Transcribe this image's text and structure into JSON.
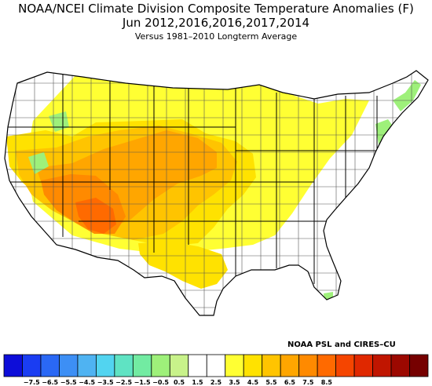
{
  "title": {
    "line1": "NOAA/NCEI Climate Division Composite Temperature Anomalies (F)",
    "line2": "Jun   2012,2016,2016,2017,2014",
    "line3": "Versus 1981–2010 Longterm Average"
  },
  "credit": "NOAA PSL and CIRES–CU",
  "colorbar": {
    "colors": [
      "#0d0dd9",
      "#1a3df2",
      "#2a68f5",
      "#3d8ff5",
      "#4fb3f2",
      "#52d4f0",
      "#5fe3c3",
      "#72eba2",
      "#9ef07a",
      "#c8f28a",
      "#ffffff",
      "#ffffff",
      "#ffff33",
      "#ffe200",
      "#ffc400",
      "#ffa600",
      "#ff8a00",
      "#ff6a00",
      "#f54500",
      "#e02800",
      "#c01500",
      "#9c0800",
      "#760000"
    ],
    "labels": [
      "−7.5",
      "−6.5",
      "−5.5",
      "−4.5",
      "−3.5",
      "−2.5",
      "−1.5",
      "−0.5",
      "0.5",
      "1.5",
      "2.5",
      "3.5",
      "4.5",
      "5.5",
      "6.5",
      "7.5",
      "8.5"
    ]
  },
  "map": {
    "land_color": "#ffffff",
    "anomaly_colors": {
      "0.5 to 1.5": "#ffff33",
      "1.5 to 2.5": "#ffe200",
      "2.5 to 3.5": "#ffc400",
      "3.5 to 4.5": "#ffa600",
      "4.5 to 5.5": "#ff8a00",
      "5.5 to 6.5": "#ff6a00",
      "-1.5 to -0.5": "#9ef07a"
    }
  }
}
